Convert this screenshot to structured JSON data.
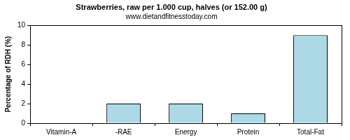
{
  "chart_data": {
    "type": "bar",
    "title": "Strawberries, raw per 1.000 cup, halves (or 152.00 g)",
    "subtitle": "www.dietandfitnesstoday.com",
    "y_label": "Percentage of RDH (%)",
    "categories": [
      "Vitamin-A",
      "-RAE",
      "Energy",
      "Protein",
      "Total-Fat"
    ],
    "values": [
      0,
      2,
      2,
      1,
      9
    ],
    "color": "#add8e6",
    "ylim": [
      0,
      10
    ],
    "yticks": [
      0,
      2,
      4,
      6,
      8,
      10
    ],
    "grid": false
  }
}
